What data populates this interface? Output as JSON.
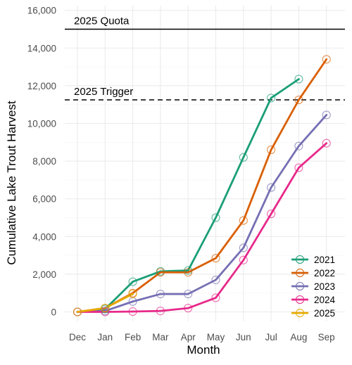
{
  "chart_data": {
    "type": "line",
    "title": "",
    "xlabel": "Month",
    "ylabel": "Cumulative Lake Trout Harvest",
    "categories": [
      "Dec",
      "Jan",
      "Feb",
      "Mar",
      "Apr",
      "May",
      "Jun",
      "Jul",
      "Aug",
      "Sep"
    ],
    "ylim": [
      -500,
      16000
    ],
    "yticks": [
      0,
      2000,
      4000,
      6000,
      8000,
      10000,
      12000,
      14000,
      16000
    ],
    "ytick_labels": [
      "0",
      "2,000",
      "4,000",
      "6,000",
      "8,000",
      "10,000",
      "12,000",
      "14,000",
      "16,000"
    ],
    "grid": true,
    "legend_position": "bottom-right",
    "reference_lines": [
      {
        "label": "2025 Quota",
        "value": 15000,
        "style": "solid"
      },
      {
        "label": "2025 Trigger",
        "value": 11250,
        "style": "dashed"
      }
    ],
    "series": [
      {
        "name": "2021",
        "color": "#1b9e77",
        "values": [
          0,
          150,
          1600,
          2150,
          2200,
          5000,
          8200,
          11350,
          12350,
          null
        ]
      },
      {
        "name": "2022",
        "color": "#d95f02",
        "values": [
          0,
          200,
          1000,
          2100,
          2100,
          2850,
          4850,
          8600,
          11250,
          13400
        ]
      },
      {
        "name": "2023",
        "color": "#7570b3",
        "values": [
          0,
          50,
          550,
          950,
          950,
          1700,
          3400,
          6600,
          8800,
          10450
        ]
      },
      {
        "name": "2024",
        "color": "#e7298a",
        "values": [
          0,
          0,
          20,
          50,
          200,
          750,
          2750,
          5200,
          7650,
          8950
        ]
      },
      {
        "name": "2025",
        "color": "#e6ab02",
        "values": [
          0,
          200,
          950,
          null,
          null,
          null,
          null,
          null,
          null,
          null
        ]
      }
    ]
  }
}
